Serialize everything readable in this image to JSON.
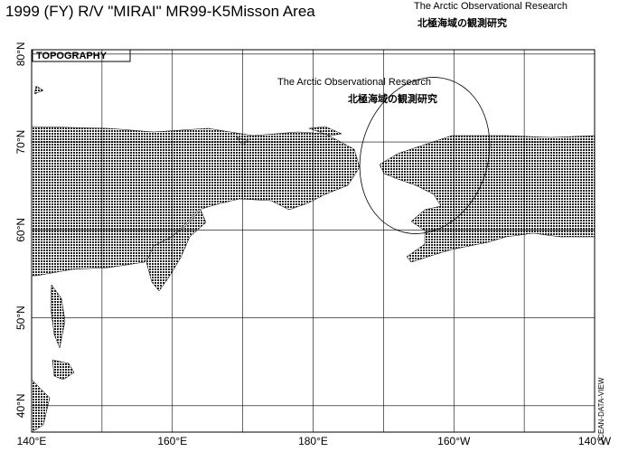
{
  "header": {
    "title": "1999 (FY) R/V \"MIRAI\" MR99-K5Misson Area",
    "subtitle_en": "The Arctic Observational Research",
    "subtitle_ja": "北極海域の観測研究"
  },
  "map": {
    "layer_label": "TOPOGRAPHY",
    "annotation_en": "The Arctic Observational Research",
    "annotation_ja": "北極海域の観測研究",
    "credit": "OCEAN-DATA-VIEW",
    "lonlim": [
      140,
      220
    ],
    "latlim": [
      37,
      80.5
    ],
    "lon_ticks": [
      {
        "value": 140,
        "label": "140°E"
      },
      {
        "value": 160,
        "label": "160°E"
      },
      {
        "value": 180,
        "label": "180°E"
      },
      {
        "value": 200,
        "label": "160°W"
      },
      {
        "value": 220,
        "label": "140°W"
      }
    ],
    "lon_grid": [
      150,
      170,
      190,
      210
    ],
    "lat_ticks": [
      {
        "value": 40,
        "label": "40°N"
      },
      {
        "value": 50,
        "label": "50°N"
      },
      {
        "value": 60,
        "label": "60°N"
      },
      {
        "value": 70,
        "label": "70°N"
      },
      {
        "value": 80,
        "label": "80°N"
      }
    ],
    "grid": true
  }
}
